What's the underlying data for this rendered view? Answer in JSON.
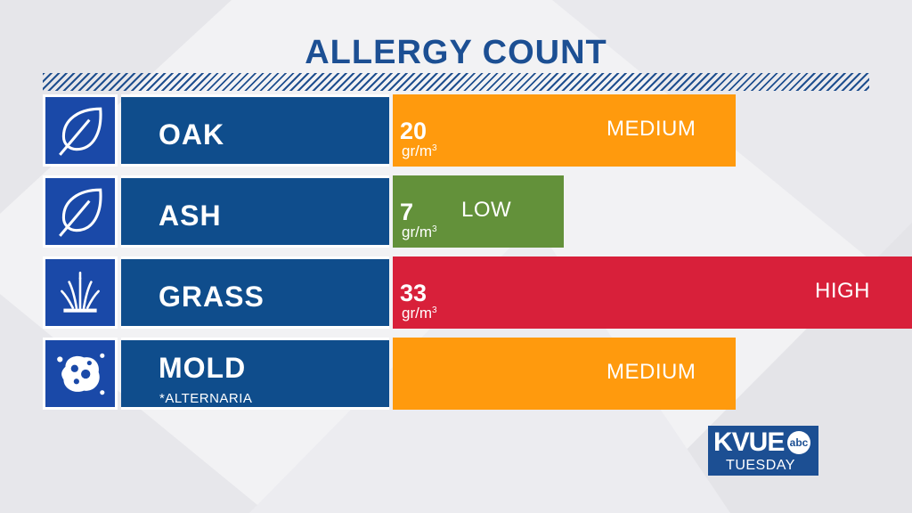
{
  "title": "ALLERGY COUNT",
  "colors": {
    "title": "#1c4f93",
    "name_box": "#0f4d8c",
    "icon_box": "#1a49a8",
    "medium": "#ff9a0d",
    "low": "#63913a",
    "high": "#d8203a"
  },
  "chart_data": {
    "type": "bar",
    "categories": [
      "OAK",
      "ASH",
      "GRASS",
      "MOLD"
    ],
    "values": [
      20,
      7,
      33,
      null
    ],
    "unit": "gr/m3",
    "levels": [
      "MEDIUM",
      "LOW",
      "HIGH",
      "MEDIUM"
    ],
    "level_scale": {
      "LOW": 0.33,
      "MEDIUM": 0.66,
      "HIGH": 1.0
    }
  },
  "rows": [
    {
      "name": "OAK",
      "subtitle": "",
      "value": "20",
      "unit": "gr/m",
      "unit_sup": "3",
      "level": "MEDIUM",
      "icon": "leaf-icon"
    },
    {
      "name": "ASH",
      "subtitle": "",
      "value": "7",
      "unit": "gr/m",
      "unit_sup": "3",
      "level": "LOW",
      "icon": "leaf-icon"
    },
    {
      "name": "GRASS",
      "subtitle": "",
      "value": "33",
      "unit": "gr/m",
      "unit_sup": "3",
      "level": "HIGH",
      "icon": "grass-icon"
    },
    {
      "name": "MOLD",
      "subtitle": "*ALTERNARIA",
      "value": "",
      "unit": "",
      "unit_sup": "",
      "level": "MEDIUM",
      "icon": "mold-spore-icon"
    }
  ],
  "logo": {
    "station": "KVUE",
    "network": "abc",
    "day": "TUESDAY"
  }
}
